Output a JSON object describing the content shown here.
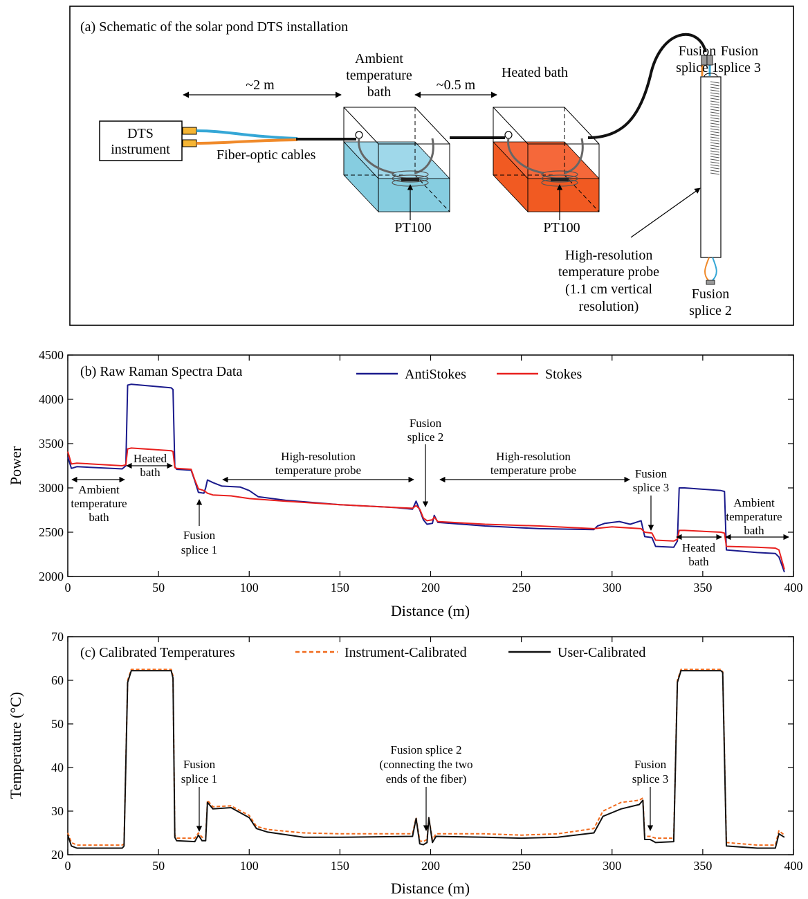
{
  "colors": {
    "antistokes": "#1a1a8c",
    "stokes": "#e8201e",
    "instrument": "#f06a1c",
    "user": "#111111",
    "cool_bath": "#86cde0",
    "hot_bath": "#f15a22",
    "connector": "#f5b534",
    "cable_blue": "#35a7d6",
    "cable_orange": "#f08a2a"
  },
  "schematic": {
    "title": "(a) Schematic of the solar pond DTS installation",
    "instrument_line1": "DTS",
    "instrument_line2": "instrument",
    "cables_label": "Fiber-optic cables",
    "dist_2m": "~2 m",
    "dist_05m": "~0.5 m",
    "ambient_line1": "Ambient",
    "ambient_line2": "temperature",
    "ambient_line3": "bath",
    "heated_label": "Heated bath",
    "pt100_a": "PT100",
    "pt100_b": "PT100",
    "fs1_line1": "Fusion",
    "fs1_line2": "splice 1",
    "fs3_line1": "Fusion",
    "fs3_line2": "splice 3",
    "fs2_line1": "Fusion",
    "fs2_line2": "splice 2",
    "probe_line1": "High-resolution",
    "probe_line2": "temperature probe",
    "probe_line3": "(1.1 cm vertical",
    "probe_line4": "resolution)"
  },
  "chart_data": [
    {
      "type": "line",
      "title": "(b) Raw Raman Spectra Data",
      "xlabel": "Distance (m)",
      "ylabel": "Power",
      "xlim": [
        0,
        400
      ],
      "ylim": [
        2000,
        4500
      ],
      "xticks": [
        0,
        50,
        100,
        150,
        200,
        250,
        300,
        350,
        400
      ],
      "yticks": [
        2000,
        2500,
        3000,
        3500,
        4000,
        4500
      ],
      "legend": "top-center",
      "series": [
        {
          "name": "AntiStokes",
          "points": [
            [
              0,
              3350
            ],
            [
              2,
              3220
            ],
            [
              5,
              3240
            ],
            [
              30,
              3215
            ],
            [
              32,
              3250
            ],
            [
              33,
              4160
            ],
            [
              35,
              4170
            ],
            [
              57,
              4130
            ],
            [
              58,
              4110
            ],
            [
              59,
              3240
            ],
            [
              60,
              3210
            ],
            [
              68,
              3200
            ],
            [
              70,
              3080
            ],
            [
              72,
              2950
            ],
            [
              75,
              2940
            ],
            [
              76,
              3000
            ],
            [
              77,
              3090
            ],
            [
              80,
              3060
            ],
            [
              85,
              3020
            ],
            [
              95,
              3010
            ],
            [
              100,
              2970
            ],
            [
              105,
              2900
            ],
            [
              120,
              2860
            ],
            [
              150,
              2810
            ],
            [
              180,
              2780
            ],
            [
              190,
              2760
            ],
            [
              192,
              2850
            ],
            [
              194,
              2750
            ],
            [
              196,
              2640
            ],
            [
              198,
              2590
            ],
            [
              201,
              2600
            ],
            [
              202,
              2690
            ],
            [
              204,
              2610
            ],
            [
              230,
              2570
            ],
            [
              260,
              2540
            ],
            [
              290,
              2530
            ],
            [
              292,
              2570
            ],
            [
              296,
              2600
            ],
            [
              304,
              2620
            ],
            [
              310,
              2590
            ],
            [
              316,
              2630
            ],
            [
              318,
              2450
            ],
            [
              322,
              2440
            ],
            [
              324,
              2340
            ],
            [
              334,
              2330
            ],
            [
              336,
              2400
            ],
            [
              337,
              3000
            ],
            [
              340,
              3000
            ],
            [
              360,
              2970
            ],
            [
              362,
              2960
            ],
            [
              363,
              2300
            ],
            [
              380,
              2270
            ],
            [
              390,
              2260
            ],
            [
              392,
              2220
            ],
            [
              395,
              2050
            ]
          ]
        },
        {
          "name": "Stokes",
          "points": [
            [
              0,
              3410
            ],
            [
              2,
              3270
            ],
            [
              5,
              3280
            ],
            [
              30,
              3250
            ],
            [
              32,
              3260
            ],
            [
              33,
              3440
            ],
            [
              35,
              3450
            ],
            [
              57,
              3420
            ],
            [
              58,
              3410
            ],
            [
              59,
              3230
            ],
            [
              60,
              3220
            ],
            [
              68,
              3210
            ],
            [
              70,
              3090
            ],
            [
              72,
              2990
            ],
            [
              75,
              2970
            ],
            [
              77,
              2940
            ],
            [
              80,
              2920
            ],
            [
              90,
              2910
            ],
            [
              100,
              2880
            ],
            [
              120,
              2850
            ],
            [
              150,
              2810
            ],
            [
              180,
              2780
            ],
            [
              190,
              2770
            ],
            [
              192,
              2800
            ],
            [
              194,
              2760
            ],
            [
              196,
              2660
            ],
            [
              198,
              2630
            ],
            [
              201,
              2640
            ],
            [
              202,
              2670
            ],
            [
              204,
              2620
            ],
            [
              230,
              2590
            ],
            [
              260,
              2570
            ],
            [
              290,
              2540
            ],
            [
              300,
              2560
            ],
            [
              316,
              2540
            ],
            [
              318,
              2500
            ],
            [
              322,
              2490
            ],
            [
              324,
              2410
            ],
            [
              334,
              2400
            ],
            [
              336,
              2420
            ],
            [
              337,
              2520
            ],
            [
              340,
              2520
            ],
            [
              360,
              2500
            ],
            [
              362,
              2490
            ],
            [
              363,
              2340
            ],
            [
              380,
              2330
            ],
            [
              390,
              2320
            ],
            [
              392,
              2300
            ],
            [
              395,
              2080
            ]
          ]
        }
      ],
      "annotations": {
        "ambient_left_1": "Ambient",
        "ambient_left_2": "temperature",
        "ambient_left_3": "bath",
        "heated_1": "Heated",
        "heated_2": "bath",
        "fs1_1": "Fusion",
        "fs1_2": "splice 1",
        "hr_left_1": "High-resolution",
        "hr_left_2": "temperature probe",
        "fs2_1": "Fusion",
        "fs2_2": "splice 2",
        "hr_right_1": "High-resolution",
        "hr_right_2": "temperature probe",
        "fs3_1": "Fusion",
        "fs3_2": "splice 3",
        "heated_r_1": "Heated",
        "heated_r_2": "bath",
        "ambient_right_1": "Ambient",
        "ambient_right_2": "temperature",
        "ambient_right_3": "bath"
      }
    },
    {
      "type": "line",
      "title": "(c) Calibrated Temperatures",
      "xlabel": "Distance (m)",
      "ylabel": "Temperature (°C)",
      "xlim": [
        0,
        400
      ],
      "ylim": [
        20,
        70
      ],
      "xticks": [
        0,
        50,
        100,
        150,
        200,
        250,
        300,
        350,
        400
      ],
      "yticks": [
        20,
        30,
        40,
        50,
        60,
        70
      ],
      "legend": "top-center",
      "series": [
        {
          "name": "Instrument-Calibrated",
          "points": [
            [
              0,
              25
            ],
            [
              2,
              22.8
            ],
            [
              5,
              22.2
            ],
            [
              30,
              22.2
            ],
            [
              31,
              22.5
            ],
            [
              33,
              60
            ],
            [
              35,
              62.5
            ],
            [
              57,
              62.5
            ],
            [
              58,
              61
            ],
            [
              59,
              24.5
            ],
            [
              60,
              23.8
            ],
            [
              70,
              23.8
            ],
            [
              72,
              25
            ],
            [
              74,
              24
            ],
            [
              76,
              24
            ],
            [
              77,
              32.5
            ],
            [
              80,
              31
            ],
            [
              90,
              31.2
            ],
            [
              100,
              29
            ],
            [
              104,
              26.5
            ],
            [
              110,
              25.8
            ],
            [
              130,
              25
            ],
            [
              150,
              24.8
            ],
            [
              190,
              24.8
            ],
            [
              192,
              28.5
            ],
            [
              194,
              23.2
            ],
            [
              196,
              23
            ],
            [
              198,
              23.5
            ],
            [
              199,
              28.5
            ],
            [
              201,
              23.5
            ],
            [
              203,
              24.8
            ],
            [
              230,
              24.8
            ],
            [
              250,
              24.5
            ],
            [
              270,
              24.8
            ],
            [
              290,
              26
            ],
            [
              295,
              30
            ],
            [
              305,
              32
            ],
            [
              315,
              32.5
            ],
            [
              317,
              33
            ],
            [
              318,
              24.2
            ],
            [
              321,
              24.2
            ],
            [
              324,
              23.8
            ],
            [
              334,
              23.8
            ],
            [
              336,
              60
            ],
            [
              338,
              62.5
            ],
            [
              360,
              62.5
            ],
            [
              361,
              62
            ],
            [
              363,
              22.8
            ],
            [
              380,
              22.2
            ],
            [
              390,
              22.2
            ],
            [
              392,
              25.5
            ],
            [
              395,
              24.5
            ]
          ]
        },
        {
          "name": "User-Calibrated",
          "points": [
            [
              0,
              24.5
            ],
            [
              2,
              22
            ],
            [
              5,
              21.5
            ],
            [
              30,
              21.5
            ],
            [
              31,
              22
            ],
            [
              33,
              59.5
            ],
            [
              35,
              62.2
            ],
            [
              57,
              62.2
            ],
            [
              58,
              60.5
            ],
            [
              59,
              24
            ],
            [
              60,
              23.2
            ],
            [
              70,
              23
            ],
            [
              72,
              24.5
            ],
            [
              74,
              23.2
            ],
            [
              76,
              23.2
            ],
            [
              77,
              32
            ],
            [
              80,
              30.5
            ],
            [
              90,
              30.8
            ],
            [
              100,
              28.5
            ],
            [
              104,
              26
            ],
            [
              110,
              25.2
            ],
            [
              130,
              24
            ],
            [
              150,
              24
            ],
            [
              190,
              24.2
            ],
            [
              192,
              28.3
            ],
            [
              194,
              22.5
            ],
            [
              196,
              22.3
            ],
            [
              198,
              22.8
            ],
            [
              199,
              28.5
            ],
            [
              201,
              22.8
            ],
            [
              203,
              24.2
            ],
            [
              230,
              24
            ],
            [
              250,
              23.8
            ],
            [
              270,
              24
            ],
            [
              290,
              25
            ],
            [
              295,
              28.8
            ],
            [
              305,
              30.5
            ],
            [
              315,
              31.5
            ],
            [
              317,
              32.5
            ],
            [
              318,
              23.5
            ],
            [
              321,
              23.5
            ],
            [
              324,
              22.8
            ],
            [
              334,
              23
            ],
            [
              336,
              59.5
            ],
            [
              338,
              62.2
            ],
            [
              360,
              62.2
            ],
            [
              361,
              61.8
            ],
            [
              363,
              22
            ],
            [
              380,
              21.5
            ],
            [
              390,
              21.5
            ],
            [
              392,
              24.8
            ],
            [
              395,
              24
            ]
          ]
        }
      ],
      "annotations": {
        "fs1_1": "Fusion",
        "fs1_2": "splice 1",
        "fs2_1": "Fusion splice 2",
        "fs2_2": "(connecting the two",
        "fs2_3": "ends of the fiber)",
        "fs3_1": "Fusion",
        "fs3_2": "splice 3"
      }
    }
  ]
}
